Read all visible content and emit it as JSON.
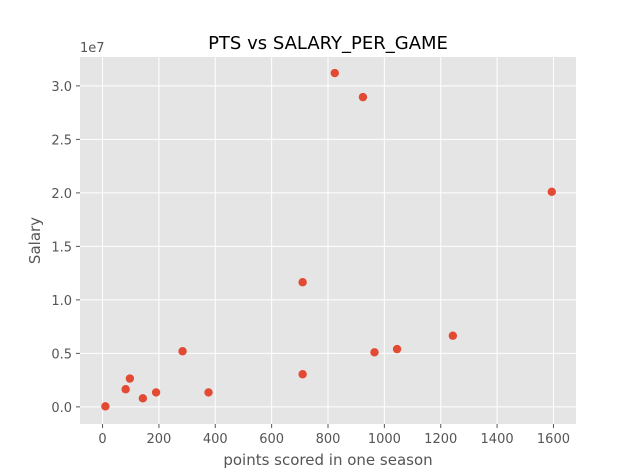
{
  "chart_data": {
    "type": "scatter",
    "title": "PTS vs SALARY_PER_GAME",
    "xlabel": "points scored in one season",
    "ylabel": "Salary",
    "y_offset_label": "1e7",
    "xlim": [
      -80,
      1680
    ],
    "ylim": [
      -1600000,
      32700000
    ],
    "x_ticks": [
      0,
      200,
      400,
      600,
      800,
      1000,
      1200,
      1400,
      1600
    ],
    "x_tick_labels": [
      "0",
      "200",
      "400",
      "600",
      "800",
      "1000",
      "1200",
      "1400",
      "1600"
    ],
    "y_ticks": [
      0,
      5000000,
      10000000,
      15000000,
      20000000,
      25000000,
      30000000
    ],
    "y_tick_labels": [
      "0.0",
      "0.5",
      "1.0",
      "1.5",
      "2.0",
      "2.5",
      "3.0"
    ],
    "grid": true,
    "style": "ggplot",
    "colors": {
      "background": "#e5e5e5",
      "grid": "#ffffff",
      "marker": "#e24a33"
    },
    "points": [
      {
        "x": 10,
        "y": 50000
      },
      {
        "x": 82,
        "y": 1650000
      },
      {
        "x": 97,
        "y": 2650000
      },
      {
        "x": 143,
        "y": 800000
      },
      {
        "x": 190,
        "y": 1350000
      },
      {
        "x": 284,
        "y": 5200000
      },
      {
        "x": 376,
        "y": 1350000
      },
      {
        "x": 710,
        "y": 3050000
      },
      {
        "x": 710,
        "y": 11650000
      },
      {
        "x": 824,
        "y": 31200000
      },
      {
        "x": 924,
        "y": 28950000
      },
      {
        "x": 965,
        "y": 5100000
      },
      {
        "x": 1045,
        "y": 5400000
      },
      {
        "x": 1243,
        "y": 6650000
      },
      {
        "x": 1594,
        "y": 20100000
      }
    ]
  }
}
